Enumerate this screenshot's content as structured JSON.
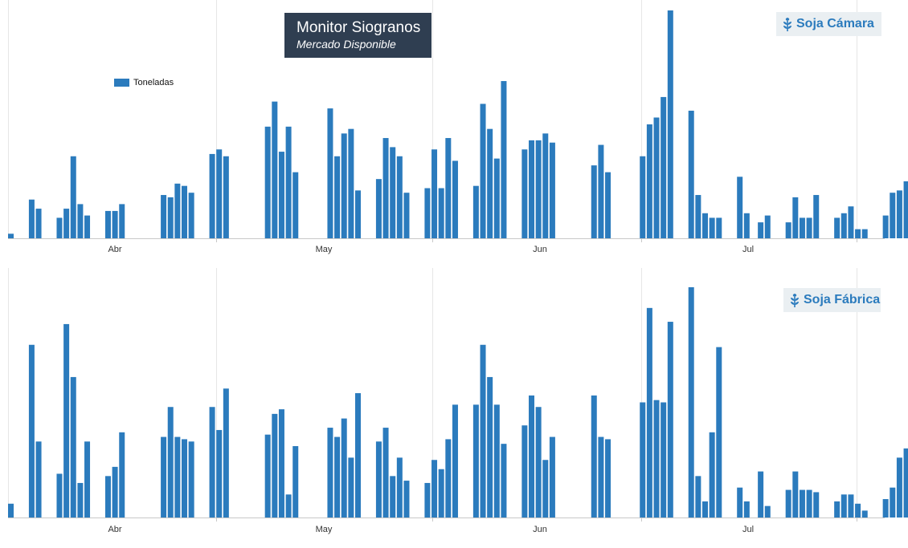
{
  "header": {
    "title": "Monitor Siogranos",
    "subtitle": "Mercado Disponible"
  },
  "legend": {
    "label": "Toneladas",
    "color": "#2b7bbd"
  },
  "colors": {
    "bar": "#2b7bbd",
    "grid": "#e6e6e6",
    "axis": "#c8c8c8",
    "badge_bg": "#eaeff2",
    "title_bg": "#2f3e51"
  },
  "panels": [
    {
      "badge": "Soja Cámara",
      "badge_icon": "wheat-icon"
    },
    {
      "badge": "Soja Fábrica",
      "badge_icon": "wheat-icon"
    }
  ],
  "chart_data": [
    {
      "type": "bar",
      "title": "Soja Cámara",
      "ylabel": "",
      "x_ticks": [
        "Abr",
        "May",
        "Jun",
        "Jul"
      ],
      "grid": "vertical",
      "legend_position": "top-left",
      "series": [
        {
          "name": "Toneladas",
          "values": [
            0.02,
            null,
            null,
            0.17,
            0.13,
            null,
            null,
            0.09,
            0.13,
            0.36,
            0.15,
            0.1,
            null,
            null,
            0.12,
            0.12,
            0.15,
            null,
            null,
            null,
            null,
            null,
            0.19,
            0.18,
            0.24,
            0.23,
            0.2,
            null,
            null,
            0.37,
            0.39,
            0.36,
            null,
            null,
            null,
            null,
            null,
            0.49,
            0.6,
            0.38,
            0.49,
            0.29,
            null,
            null,
            null,
            null,
            0.57,
            0.36,
            0.46,
            0.48,
            0.21,
            null,
            null,
            0.26,
            0.44,
            0.4,
            0.36,
            0.2,
            null,
            null,
            0.22,
            0.39,
            0.22,
            0.44,
            0.34,
            null,
            null,
            0.23,
            0.59,
            0.48,
            0.35,
            0.69,
            null,
            null,
            0.39,
            0.43,
            0.43,
            0.46,
            0.42,
            null,
            null,
            null,
            null,
            null,
            0.32,
            0.41,
            0.29,
            null,
            null,
            null,
            null,
            0.36,
            0.5,
            0.53,
            0.62,
            1.0,
            null,
            null,
            0.56,
            0.19,
            0.11,
            0.09,
            0.09,
            null,
            null,
            0.27,
            0.11,
            null,
            0.07,
            0.1,
            null,
            null,
            0.07,
            0.18,
            0.09,
            0.09,
            0.19,
            null,
            null,
            0.09,
            0.11,
            0.14,
            0.04,
            0.04,
            null,
            null,
            0.1,
            0.2,
            0.21,
            0.25,
            0.24,
            null,
            null,
            0.18
          ]
        }
      ]
    },
    {
      "type": "bar",
      "title": "Soja Fábrica",
      "ylabel": "",
      "x_ticks": [
        "Abr",
        "May",
        "Jun",
        "Jul"
      ],
      "grid": "vertical",
      "series": [
        {
          "name": "Toneladas",
          "values": [
            0.06,
            null,
            null,
            0.75,
            0.33,
            null,
            null,
            0.19,
            0.84,
            0.61,
            0.15,
            0.33,
            null,
            null,
            0.18,
            0.22,
            0.37,
            null,
            null,
            null,
            null,
            null,
            0.35,
            0.48,
            0.35,
            0.34,
            0.33,
            null,
            null,
            0.48,
            0.38,
            0.56,
            null,
            null,
            null,
            null,
            null,
            0.36,
            0.45,
            0.47,
            0.1,
            0.31,
            null,
            null,
            null,
            null,
            0.39,
            0.35,
            0.43,
            0.26,
            0.54,
            null,
            null,
            0.33,
            0.39,
            0.18,
            0.26,
            0.16,
            null,
            null,
            0.15,
            0.25,
            0.21,
            0.34,
            0.49,
            null,
            null,
            0.49,
            0.75,
            0.61,
            0.49,
            0.32,
            null,
            null,
            0.4,
            0.53,
            0.48,
            0.25,
            0.35,
            null,
            null,
            null,
            null,
            null,
            0.53,
            0.35,
            0.34,
            null,
            null,
            null,
            null,
            0.5,
            0.91,
            0.51,
            0.5,
            0.85,
            null,
            null,
            1.0,
            0.18,
            0.07,
            0.37,
            0.74,
            null,
            null,
            0.13,
            0.07,
            null,
            0.2,
            0.05,
            null,
            null,
            0.12,
            0.2,
            0.12,
            0.12,
            0.11,
            null,
            null,
            0.07,
            0.1,
            0.1,
            0.06,
            0.03,
            null,
            null,
            0.08,
            0.13,
            0.26,
            0.3,
            0.25,
            null,
            null,
            0.37
          ]
        }
      ]
    }
  ]
}
